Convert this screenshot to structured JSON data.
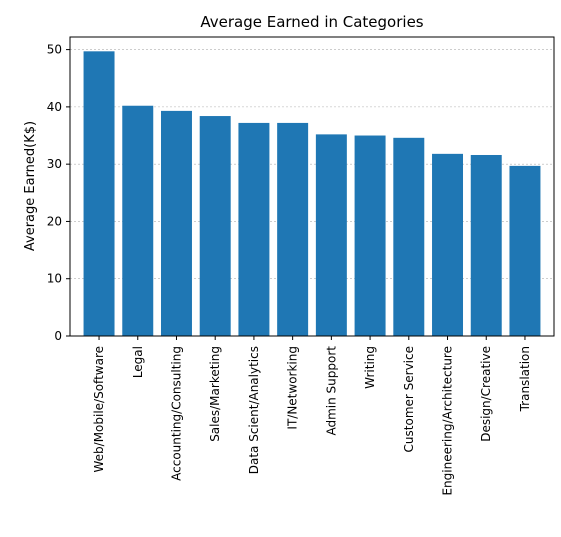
{
  "chart_data": {
    "type": "bar",
    "title": "Average Earned in Categories",
    "xlabel": "",
    "ylabel": "Average Earned(K$)",
    "categories": [
      "Web/Mobile/Software",
      "Legal",
      "Accounting/Consulting",
      "Sales/Marketing",
      "Data Scient/Analytics",
      "IT/Networking",
      "Admin Support",
      "Writing",
      "Customer Service",
      "Engineering/Architecture",
      "Design/Creative",
      "Translation"
    ],
    "values": [
      49.7,
      40.2,
      39.3,
      38.4,
      37.2,
      37.2,
      35.2,
      35.0,
      34.6,
      31.8,
      31.6,
      29.7
    ],
    "ylim": [
      0,
      52.2
    ],
    "yticks": [
      0,
      10,
      20,
      30,
      40,
      50
    ],
    "grid": "y-dashed",
    "bar_color": "#1f77b4",
    "legend": "none"
  }
}
